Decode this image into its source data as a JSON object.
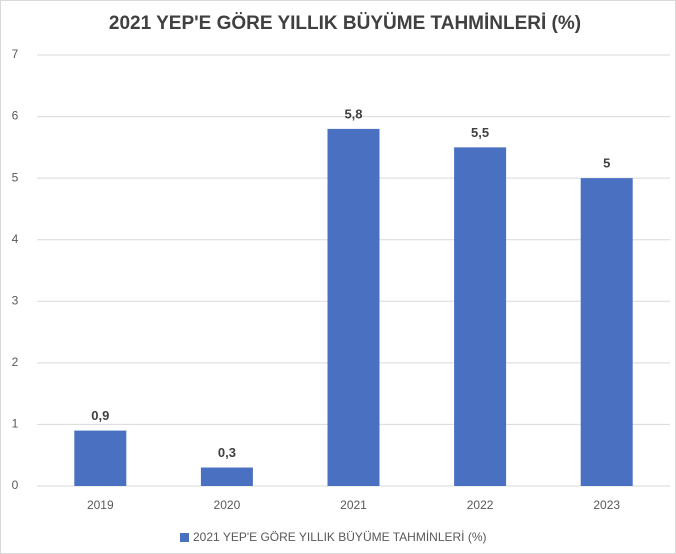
{
  "chart_data": {
    "type": "bar",
    "title": "2021 YEP'E GÖRE YILLIK BÜYÜME TAHMİNLERİ (%)",
    "categories": [
      "2019",
      "2020",
      "2021",
      "2022",
      "2023"
    ],
    "series": [
      {
        "name": "2021 YEP'E GÖRE YILLIK BÜYÜME TAHMİNLERİ (%)",
        "color": "#4a70c2",
        "values": [
          0.9,
          0.3,
          5.8,
          5.5,
          5
        ],
        "value_labels": [
          "0,9",
          "0,3",
          "5,8",
          "5,5",
          "5"
        ]
      }
    ],
    "ylim": [
      0,
      7
    ],
    "yticks": [
      0,
      1,
      2,
      3,
      4,
      5,
      6,
      7
    ],
    "grid": true,
    "legend": "bottom"
  }
}
